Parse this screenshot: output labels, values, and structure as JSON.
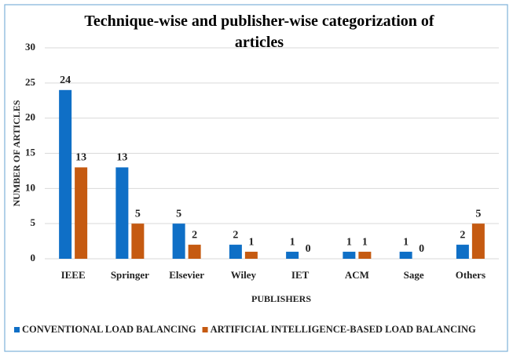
{
  "chart_data": {
    "type": "bar",
    "title": "Technique-wise and publisher-wise categorization of articles",
    "categories": [
      "IEEE",
      "Springer",
      "Elsevier",
      "Wiley",
      "IET",
      "ACM",
      "Sage",
      "Others"
    ],
    "series": [
      {
        "name": "CONVENTIONAL LOAD BALANCING",
        "color": "#0f6fc6",
        "values": [
          24,
          13,
          5,
          2,
          1,
          1,
          1,
          2
        ]
      },
      {
        "name": "ARTIFICIAL INTELLIGENCE-BASED LOAD BALANCING",
        "color": "#c55a11",
        "values": [
          13,
          5,
          2,
          1,
          0,
          1,
          0,
          5
        ]
      }
    ],
    "x_label": "PUBLISHERS",
    "y_label": "NUMBER OF ARTICLES",
    "ylim": [
      0,
      30
    ],
    "yticks": [
      0,
      5,
      10,
      15,
      20,
      25,
      30
    ],
    "grid": true,
    "legend": "bottom"
  }
}
